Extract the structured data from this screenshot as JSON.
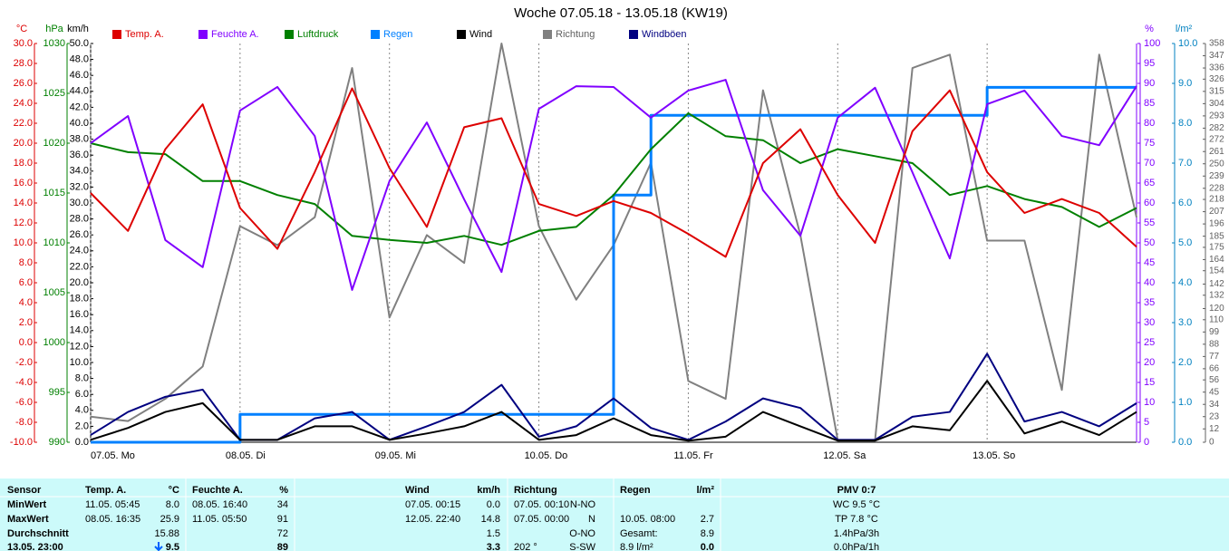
{
  "chart_data": {
    "type": "line",
    "title": "Woche 07.05.18 - 13.05.18 (KW19)",
    "xlim": [
      0,
      168
    ],
    "xticks": [
      {
        "value": 0,
        "label": "07.05. Mo"
      },
      {
        "value": 24,
        "label": "08.05. Di"
      },
      {
        "value": 48,
        "label": "09.05. Mi"
      },
      {
        "value": 72,
        "label": "10.05. Do"
      },
      {
        "value": 96,
        "label": "11.05. Fr"
      },
      {
        "value": 120,
        "label": "12.05. Sa"
      },
      {
        "value": 144,
        "label": "13.05. So"
      }
    ],
    "grid": true,
    "axes": [
      {
        "unit": "°C",
        "side": "left",
        "color": "#dd0000",
        "lim": [
          -10,
          30
        ],
        "ticks": [
          {
            "value": -10,
            "label": "-10.0"
          },
          {
            "value": -8,
            "label": "-8.0"
          },
          {
            "value": -6,
            "label": "-6.0"
          },
          {
            "value": -4,
            "label": "-4.0"
          },
          {
            "value": -2,
            "label": "-2.0"
          },
          {
            "value": 0,
            "label": "0.0"
          },
          {
            "value": 2,
            "label": "2.0"
          },
          {
            "value": 4,
            "label": "4.0"
          },
          {
            "value": 6,
            "label": "6.0"
          },
          {
            "value": 8,
            "label": "8.0"
          },
          {
            "value": 10,
            "label": "10.0"
          },
          {
            "value": 12,
            "label": "12.0"
          },
          {
            "value": 14,
            "label": "14.0"
          },
          {
            "value": 16,
            "label": "16.0"
          },
          {
            "value": 18,
            "label": "18.0"
          },
          {
            "value": 20,
            "label": "20.0"
          },
          {
            "value": 22,
            "label": "22.0"
          },
          {
            "value": 24,
            "label": "24.0"
          },
          {
            "value": 26,
            "label": "26.0"
          },
          {
            "value": 28,
            "label": "28.0"
          },
          {
            "value": 30,
            "label": "30.0"
          }
        ]
      },
      {
        "unit": "hPa",
        "side": "left",
        "color": "#008000",
        "lim": [
          990,
          1030
        ],
        "ticks": [
          990,
          995,
          1000,
          1005,
          1010,
          1015,
          1020,
          1025,
          1030
        ]
      },
      {
        "unit": "km/h",
        "side": "left",
        "color": "#000000",
        "lim": [
          0,
          50
        ],
        "ticks": [
          {
            "value": 0,
            "label": "0.0"
          },
          {
            "value": 2,
            "label": "2.0"
          },
          {
            "value": 4,
            "label": "4.0"
          },
          {
            "value": 6,
            "label": "6.0"
          },
          {
            "value": 8,
            "label": "8.0"
          },
          {
            "value": 10,
            "label": "10.0"
          },
          {
            "value": 12,
            "label": "12.0"
          },
          {
            "value": 14,
            "label": "14.0"
          },
          {
            "value": 16,
            "label": "16.0"
          },
          {
            "value": 18,
            "label": "18.0"
          },
          {
            "value": 20,
            "label": "20.0"
          },
          {
            "value": 22,
            "label": "22.0"
          },
          {
            "value": 24,
            "label": "24.0"
          },
          {
            "value": 26,
            "label": "26.0"
          },
          {
            "value": 28,
            "label": "28.0"
          },
          {
            "value": 30,
            "label": "30.0"
          },
          {
            "value": 32,
            "label": "32.0"
          },
          {
            "value": 34,
            "label": "34.0"
          },
          {
            "value": 36,
            "label": "36.0"
          },
          {
            "value": 38,
            "label": "38.0"
          },
          {
            "value": 40,
            "label": "40.0"
          },
          {
            "value": 42,
            "label": "42.0"
          },
          {
            "value": 44,
            "label": "44.0"
          },
          {
            "value": 46,
            "label": "46.0"
          },
          {
            "value": 48,
            "label": "48.0"
          },
          {
            "value": 50,
            "label": "50.0"
          }
        ]
      },
      {
        "unit": "%",
        "side": "right",
        "color": "#8000ff",
        "lim": [
          0,
          100
        ],
        "ticks": [
          0,
          5,
          10,
          15,
          20,
          25,
          30,
          35,
          40,
          45,
          50,
          55,
          60,
          65,
          70,
          75,
          80,
          85,
          90,
          95,
          100
        ]
      },
      {
        "unit": "l/m²",
        "side": "right",
        "color": "#0080c0",
        "lim": [
          0,
          10
        ],
        "ticks": [
          {
            "value": 0,
            "label": "0.0"
          },
          {
            "value": 1,
            "label": "1.0"
          },
          {
            "value": 2,
            "label": "2.0"
          },
          {
            "value": 3,
            "label": "3.0"
          },
          {
            "value": 4,
            "label": "4.0"
          },
          {
            "value": 5,
            "label": "5.0"
          },
          {
            "value": 6,
            "label": "6.0"
          },
          {
            "value": 7,
            "label": "7.0"
          },
          {
            "value": 8,
            "label": "8.0"
          },
          {
            "value": 9,
            "label": "9.0"
          },
          {
            "value": 10,
            "label": "10.0"
          }
        ]
      },
      {
        "side": "right",
        "color": "#606060",
        "lim": [
          0,
          358
        ],
        "ticks": [
          0,
          12,
          23,
          34,
          45,
          56,
          66,
          77,
          88,
          99,
          110,
          120,
          132,
          142,
          154,
          164,
          175,
          185,
          196,
          207,
          218,
          228,
          239,
          250,
          261,
          272,
          282,
          293,
          304,
          315,
          326,
          336,
          347,
          358
        ]
      }
    ],
    "x": [
      0,
      6,
      12,
      18,
      24,
      30,
      36,
      42,
      48,
      54,
      60,
      66,
      72,
      78,
      84,
      90,
      96,
      102,
      108,
      114,
      120,
      126,
      132,
      138,
      144,
      150,
      156,
      162,
      168
    ],
    "series": [
      {
        "name": "Richtung",
        "color": "#808080",
        "axis": 5,
        "values": [
          23,
          19,
          39,
          68,
          194,
          177,
          202,
          336,
          112,
          186,
          161,
          358,
          194,
          128,
          177,
          251,
          55,
          39,
          316,
          186,
          2,
          2,
          336,
          348,
          181,
          181,
          47,
          348,
          202
        ]
      },
      {
        "name": "Regen",
        "color": "#0080ff",
        "axis": 4,
        "step": true,
        "values": [
          0,
          0,
          0,
          0,
          0.7,
          0.7,
          0.7,
          0.7,
          0.7,
          0.7,
          0.7,
          0.7,
          0.7,
          0.7,
          6.2,
          8.2,
          8.2,
          8.2,
          8.2,
          8.2,
          8.2,
          8.2,
          8.2,
          8.2,
          8.9,
          8.9,
          8.9,
          8.9,
          8.9
        ]
      },
      {
        "name": "Luftdruck",
        "color": "#008000",
        "axis": 1,
        "values": [
          1020.0,
          1019.1,
          1018.9,
          1016.2,
          1016.2,
          1014.8,
          1013.9,
          1010.7,
          1010.3,
          1010.0,
          1010.7,
          1009.8,
          1011.2,
          1011.6,
          1014.8,
          1019.4,
          1023.0,
          1020.7,
          1020.3,
          1018.0,
          1019.4,
          1018.7,
          1018.0,
          1014.8,
          1015.7,
          1014.4,
          1013.6,
          1011.6,
          1013.5
        ]
      },
      {
        "name": "Feuchte A.",
        "color": "#8000ff",
        "axis": 3,
        "values": [
          75,
          81.8,
          50.7,
          43.9,
          83.2,
          89.1,
          76.8,
          38.2,
          65.5,
          80.2,
          60.9,
          42.7,
          83.6,
          89.3,
          89.1,
          81.4,
          88.2,
          90.9,
          63.2,
          51.8,
          81.4,
          88.9,
          67.7,
          46.1,
          84.8,
          88.2,
          76.8,
          74.5,
          89.3
        ]
      },
      {
        "name": "Temp. A.",
        "color": "#dd0000",
        "axis": 0,
        "values": [
          15.0,
          11.2,
          19.4,
          23.9,
          13.5,
          9.4,
          17.1,
          25.5,
          17.5,
          11.6,
          21.6,
          22.5,
          13.9,
          12.7,
          14.2,
          13.0,
          10.9,
          8.6,
          18.0,
          21.4,
          14.8,
          10.0,
          21.2,
          25.3,
          17.1,
          13.0,
          14.4,
          13.0,
          9.6
        ]
      },
      {
        "name": "Windböen",
        "color": "#000080",
        "axis": 2,
        "values": [
          0.9,
          3.8,
          5.7,
          6.6,
          0.3,
          0.3,
          3.0,
          3.8,
          0.3,
          2.0,
          3.8,
          7.2,
          0.7,
          2.0,
          5.5,
          1.8,
          0.3,
          2.6,
          5.5,
          4.3,
          0.3,
          0.3,
          3.2,
          3.8,
          11.1,
          2.6,
          3.8,
          2.0,
          4.9
        ]
      },
      {
        "name": "Wind",
        "color": "#000000",
        "axis": 2,
        "values": [
          0.3,
          1.8,
          3.8,
          4.9,
          0.3,
          0.3,
          2.0,
          2.0,
          0.3,
          1.1,
          2.0,
          3.8,
          0.3,
          0.9,
          3.0,
          0.9,
          0.2,
          0.7,
          3.8,
          2.0,
          0.2,
          0.2,
          2.0,
          1.5,
          7.7,
          1.1,
          2.6,
          0.9,
          3.8
        ]
      }
    ],
    "legend_order": [
      4,
      3,
      2,
      1,
      6,
      0,
      5
    ]
  },
  "table": {
    "header": {
      "label": "Sensor",
      "temp_time": "Temp. A.",
      "temp": "°C",
      "hum_time": "Feuchte A.",
      "hum": "%",
      "wind_time": "Wind",
      "wind": "km/h",
      "dir_time": "Richtung",
      "rain_time": "Regen",
      "rain": "l/m²",
      "pmv": "PMV 0:7"
    },
    "rows": [
      {
        "label": "MinWert",
        "temp_time": "11.05. 05:45",
        "temp": "8.0",
        "hum_time": "08.05. 16:40",
        "hum": "34",
        "wind_time": "07.05. 00:15",
        "wind": "0.0",
        "dir_time": "07.05. 00:10",
        "dir": "N-NO",
        "pmv": "WC 9.5 °C"
      },
      {
        "label": "MaxWert",
        "temp_time": "08.05. 16:35",
        "temp": "25.9",
        "hum_time": "11.05. 05:50",
        "hum": "91",
        "wind_time": "12.05. 22:40",
        "wind": "14.8",
        "dir_time": "07.05. 00:00",
        "dir": "N",
        "rain_time": "10.05. 08:00",
        "rain": "2.7",
        "pmv": "TP 7.8 °C"
      },
      {
        "label": "Durchschnitt",
        "temp": "15.88",
        "hum": "72",
        "wind": "1.5",
        "dir": "O-NO",
        "rain_time": "Gesamt:",
        "rain": "8.9",
        "pmv": "1.4hPa/3h"
      },
      {
        "label": "13.05. 23:00",
        "temp": "9.5",
        "hum": "89",
        "wind": "3.3",
        "dir_time": "202 °",
        "dir": "S-SW",
        "rain_time": "8.9 l/m²",
        "rain": "0.0",
        "pmv": "0.0hPa/1h"
      }
    ]
  }
}
